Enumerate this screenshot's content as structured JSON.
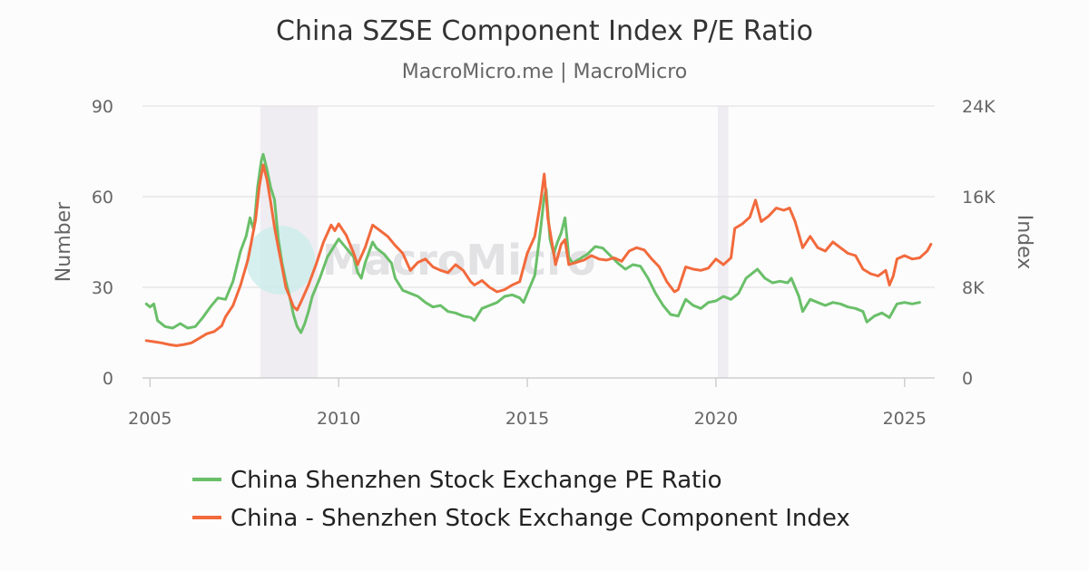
{
  "chart_data": {
    "type": "line",
    "title": "China SZSE Component Index P/E Ratio",
    "subtitle": "MacroMicro.me | MacroMicro",
    "watermark": "MacroMicro",
    "x_axis": {
      "range": [
        2004.8,
        2025.8
      ],
      "ticks": [
        "2005",
        "2010",
        "2015",
        "2020",
        "2025"
      ],
      "tick_values": [
        2005,
        2010,
        2015,
        2020,
        2025
      ]
    },
    "y_left": {
      "label": "Number",
      "range": [
        0,
        90
      ],
      "ticks": [
        "0",
        "30",
        "60",
        "90"
      ],
      "tick_values": [
        0,
        30,
        60,
        90
      ]
    },
    "y_right": {
      "label": "Index",
      "range": [
        0,
        24000
      ],
      "ticks": [
        "0",
        "8K",
        "16K",
        "24K"
      ],
      "tick_values": [
        0,
        8000,
        16000,
        24000
      ]
    },
    "grid": true,
    "legend_position": "bottom",
    "shaded_periods": [
      [
        2007.92,
        2009.45
      ],
      [
        2020.05,
        2020.33
      ]
    ],
    "colors": {
      "pe": "#6abf69",
      "index": "#f26a3c",
      "shade": "#efedf2",
      "grid": "#e3e3e3"
    },
    "series": [
      {
        "name": "China Shenzhen Stock Exchange PE Ratio",
        "axis": "left",
        "points": [
          [
            2004.9,
            24.5
          ],
          [
            2005.0,
            23.5
          ],
          [
            2005.1,
            24.5
          ],
          [
            2005.2,
            19.0
          ],
          [
            2005.4,
            17.0
          ],
          [
            2005.6,
            16.5
          ],
          [
            2005.8,
            18.0
          ],
          [
            2006.0,
            16.5
          ],
          [
            2006.2,
            17.0
          ],
          [
            2006.4,
            20.0
          ],
          [
            2006.6,
            23.5
          ],
          [
            2006.8,
            26.5
          ],
          [
            2007.0,
            26.0
          ],
          [
            2007.2,
            32.0
          ],
          [
            2007.4,
            42.0
          ],
          [
            2007.55,
            47.0
          ],
          [
            2007.65,
            53.0
          ],
          [
            2007.75,
            49.0
          ],
          [
            2007.85,
            63.0
          ],
          [
            2007.95,
            72.0
          ],
          [
            2008.0,
            74.0
          ],
          [
            2008.1,
            69.0
          ],
          [
            2008.2,
            63.0
          ],
          [
            2008.3,
            59.0
          ],
          [
            2008.4,
            46.0
          ],
          [
            2008.5,
            38.0
          ],
          [
            2008.6,
            32.0
          ],
          [
            2008.7,
            27.0
          ],
          [
            2008.8,
            21.0
          ],
          [
            2008.9,
            17.0
          ],
          [
            2009.0,
            15.0
          ],
          [
            2009.1,
            18.0
          ],
          [
            2009.2,
            22.0
          ],
          [
            2009.3,
            27.0
          ],
          [
            2009.5,
            33.0
          ],
          [
            2009.7,
            40.0
          ],
          [
            2009.9,
            44.0
          ],
          [
            2010.0,
            46.0
          ],
          [
            2010.2,
            43.0
          ],
          [
            2010.4,
            40.0
          ],
          [
            2010.5,
            35.0
          ],
          [
            2010.6,
            33.0
          ],
          [
            2010.7,
            38.0
          ],
          [
            2010.9,
            45.0
          ],
          [
            2011.0,
            43.0
          ],
          [
            2011.2,
            41.0
          ],
          [
            2011.4,
            38.0
          ],
          [
            2011.5,
            33.0
          ],
          [
            2011.7,
            29.0
          ],
          [
            2011.9,
            28.0
          ],
          [
            2012.1,
            27.0
          ],
          [
            2012.3,
            25.0
          ],
          [
            2012.5,
            23.5
          ],
          [
            2012.7,
            24.0
          ],
          [
            2012.9,
            22.0
          ],
          [
            2013.1,
            21.5
          ],
          [
            2013.3,
            20.5
          ],
          [
            2013.5,
            20.0
          ],
          [
            2013.6,
            19.0
          ],
          [
            2013.8,
            23.0
          ],
          [
            2014.0,
            24.0
          ],
          [
            2014.2,
            25.0
          ],
          [
            2014.4,
            27.0
          ],
          [
            2014.6,
            27.5
          ],
          [
            2014.8,
            26.5
          ],
          [
            2014.9,
            25.0
          ],
          [
            2015.0,
            28.0
          ],
          [
            2015.2,
            34.0
          ],
          [
            2015.35,
            49.0
          ],
          [
            2015.45,
            60.0
          ],
          [
            2015.5,
            62.5
          ],
          [
            2015.6,
            46.0
          ],
          [
            2015.7,
            41.0
          ],
          [
            2015.8,
            45.0
          ],
          [
            2015.9,
            48.0
          ],
          [
            2016.0,
            53.0
          ],
          [
            2016.1,
            40.0
          ],
          [
            2016.2,
            38.0
          ],
          [
            2016.4,
            39.5
          ],
          [
            2016.6,
            41.0
          ],
          [
            2016.8,
            43.5
          ],
          [
            2017.0,
            43.0
          ],
          [
            2017.2,
            40.5
          ],
          [
            2017.4,
            38.0
          ],
          [
            2017.6,
            36.0
          ],
          [
            2017.8,
            37.5
          ],
          [
            2018.0,
            37.0
          ],
          [
            2018.2,
            33.0
          ],
          [
            2018.4,
            28.0
          ],
          [
            2018.6,
            24.0
          ],
          [
            2018.8,
            21.0
          ],
          [
            2019.0,
            20.5
          ],
          [
            2019.2,
            26.0
          ],
          [
            2019.4,
            24.0
          ],
          [
            2019.6,
            23.0
          ],
          [
            2019.8,
            25.0
          ],
          [
            2020.0,
            25.5
          ],
          [
            2020.2,
            27.0
          ],
          [
            2020.4,
            26.0
          ],
          [
            2020.6,
            28.0
          ],
          [
            2020.8,
            33.0
          ],
          [
            2021.0,
            35.0
          ],
          [
            2021.1,
            36.0
          ],
          [
            2021.3,
            33.0
          ],
          [
            2021.5,
            31.5
          ],
          [
            2021.7,
            32.0
          ],
          [
            2021.9,
            31.5
          ],
          [
            2022.0,
            33.0
          ],
          [
            2022.2,
            27.0
          ],
          [
            2022.3,
            22.0
          ],
          [
            2022.5,
            26.0
          ],
          [
            2022.7,
            25.0
          ],
          [
            2022.9,
            24.0
          ],
          [
            2023.1,
            25.0
          ],
          [
            2023.3,
            24.5
          ],
          [
            2023.5,
            23.5
          ],
          [
            2023.7,
            23.0
          ],
          [
            2023.9,
            22.0
          ],
          [
            2024.0,
            18.5
          ],
          [
            2024.2,
            20.5
          ],
          [
            2024.4,
            21.5
          ],
          [
            2024.6,
            20.0
          ],
          [
            2024.8,
            24.5
          ],
          [
            2025.0,
            25.0
          ],
          [
            2025.2,
            24.5
          ],
          [
            2025.4,
            25.0
          ]
        ]
      },
      {
        "name": "China - Shenzhen Stock Exchange Component Index",
        "axis": "right",
        "points": [
          [
            2004.9,
            3300
          ],
          [
            2005.1,
            3200
          ],
          [
            2005.3,
            3100
          ],
          [
            2005.5,
            2950
          ],
          [
            2005.7,
            2850
          ],
          [
            2005.9,
            2950
          ],
          [
            2006.1,
            3100
          ],
          [
            2006.3,
            3500
          ],
          [
            2006.5,
            3900
          ],
          [
            2006.7,
            4100
          ],
          [
            2006.9,
            4600
          ],
          [
            2007.0,
            5400
          ],
          [
            2007.2,
            6400
          ],
          [
            2007.4,
            8200
          ],
          [
            2007.6,
            10500
          ],
          [
            2007.8,
            14000
          ],
          [
            2007.9,
            17000
          ],
          [
            2008.0,
            18800
          ],
          [
            2008.1,
            17500
          ],
          [
            2008.2,
            15500
          ],
          [
            2008.3,
            13300
          ],
          [
            2008.4,
            11500
          ],
          [
            2008.5,
            9800
          ],
          [
            2008.6,
            8000
          ],
          [
            2008.7,
            7200
          ],
          [
            2008.8,
            6300
          ],
          [
            2008.9,
            6000
          ],
          [
            2009.0,
            6700
          ],
          [
            2009.2,
            8200
          ],
          [
            2009.4,
            10000
          ],
          [
            2009.6,
            12000
          ],
          [
            2009.8,
            13500
          ],
          [
            2009.9,
            13000
          ],
          [
            2010.0,
            13600
          ],
          [
            2010.2,
            12600
          ],
          [
            2010.4,
            11000
          ],
          [
            2010.5,
            10000
          ],
          [
            2010.7,
            11500
          ],
          [
            2010.9,
            13500
          ],
          [
            2011.1,
            13000
          ],
          [
            2011.3,
            12500
          ],
          [
            2011.5,
            11700
          ],
          [
            2011.7,
            11000
          ],
          [
            2011.9,
            9500
          ],
          [
            2012.1,
            10200
          ],
          [
            2012.3,
            10500
          ],
          [
            2012.5,
            9800
          ],
          [
            2012.7,
            9500
          ],
          [
            2012.9,
            9300
          ],
          [
            2013.1,
            10000
          ],
          [
            2013.3,
            9500
          ],
          [
            2013.5,
            8500
          ],
          [
            2013.6,
            8200
          ],
          [
            2013.8,
            8600
          ],
          [
            2014.0,
            8000
          ],
          [
            2014.2,
            7600
          ],
          [
            2014.4,
            7800
          ],
          [
            2014.6,
            8200
          ],
          [
            2014.8,
            8500
          ],
          [
            2015.0,
            11000
          ],
          [
            2015.2,
            12500
          ],
          [
            2015.35,
            15500
          ],
          [
            2015.45,
            18000
          ],
          [
            2015.55,
            14000
          ],
          [
            2015.65,
            12000
          ],
          [
            2015.75,
            10000
          ],
          [
            2015.9,
            11800
          ],
          [
            2016.0,
            12200
          ],
          [
            2016.1,
            10000
          ],
          [
            2016.3,
            10200
          ],
          [
            2016.5,
            10400
          ],
          [
            2016.7,
            10800
          ],
          [
            2016.9,
            10500
          ],
          [
            2017.1,
            10400
          ],
          [
            2017.3,
            10600
          ],
          [
            2017.5,
            10300
          ],
          [
            2017.7,
            11200
          ],
          [
            2017.9,
            11500
          ],
          [
            2018.1,
            11300
          ],
          [
            2018.3,
            10500
          ],
          [
            2018.5,
            9800
          ],
          [
            2018.7,
            8500
          ],
          [
            2018.9,
            7600
          ],
          [
            2019.0,
            7800
          ],
          [
            2019.2,
            9800
          ],
          [
            2019.4,
            9600
          ],
          [
            2019.6,
            9500
          ],
          [
            2019.8,
            9700
          ],
          [
            2020.0,
            10500
          ],
          [
            2020.2,
            10000
          ],
          [
            2020.4,
            10600
          ],
          [
            2020.5,
            13200
          ],
          [
            2020.7,
            13600
          ],
          [
            2020.9,
            14200
          ],
          [
            2021.05,
            15700
          ],
          [
            2021.2,
            13800
          ],
          [
            2021.4,
            14300
          ],
          [
            2021.6,
            15000
          ],
          [
            2021.8,
            14800
          ],
          [
            2021.95,
            15000
          ],
          [
            2022.1,
            13800
          ],
          [
            2022.3,
            11500
          ],
          [
            2022.5,
            12500
          ],
          [
            2022.7,
            11500
          ],
          [
            2022.9,
            11200
          ],
          [
            2023.1,
            12000
          ],
          [
            2023.3,
            11500
          ],
          [
            2023.5,
            11000
          ],
          [
            2023.7,
            10800
          ],
          [
            2023.9,
            9600
          ],
          [
            2024.1,
            9200
          ],
          [
            2024.3,
            9000
          ],
          [
            2024.5,
            9500
          ],
          [
            2024.6,
            8200
          ],
          [
            2024.7,
            9000
          ],
          [
            2024.8,
            10500
          ],
          [
            2025.0,
            10800
          ],
          [
            2025.2,
            10500
          ],
          [
            2025.4,
            10600
          ],
          [
            2025.6,
            11200
          ],
          [
            2025.7,
            11800
          ]
        ]
      }
    ]
  }
}
